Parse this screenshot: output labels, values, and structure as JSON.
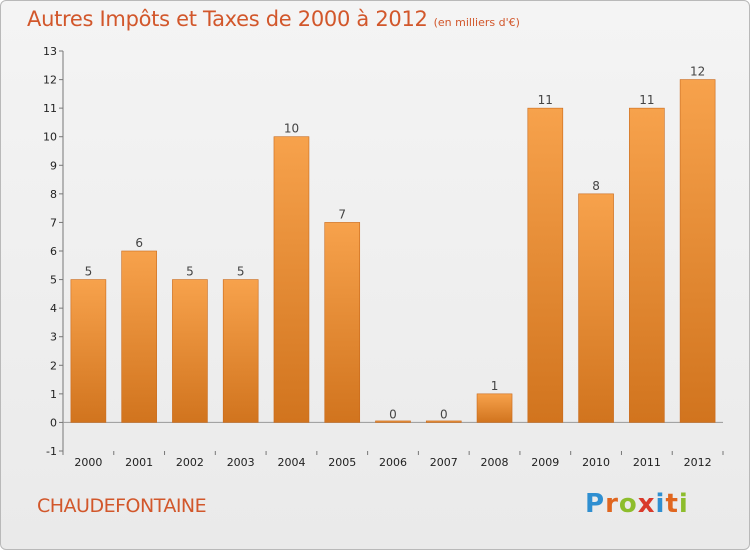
{
  "title": "Autres Impôts et Taxes de 2000 à 2012",
  "subtitle": "(en milliers d'€)",
  "commune": "CHAUDEFONTAINE",
  "logo": {
    "letters": [
      "P",
      "r",
      "o",
      "x",
      "i",
      "t",
      "i"
    ],
    "colors": [
      "#2f8fd1",
      "#e0661f",
      "#8dbd2c",
      "#d93a2b",
      "#2f8fd1",
      "#e0661f",
      "#8dbd2c"
    ]
  },
  "colors": {
    "bar_light": "#f7a24c",
    "bar_dark": "#d1741e",
    "text_accent": "#d2572b"
  },
  "chart_data": {
    "type": "bar",
    "title": "Autres Impôts et Taxes de 2000 à 2012",
    "subtitle": "(en milliers d'€)",
    "categories": [
      "2000",
      "2001",
      "2002",
      "2003",
      "2004",
      "2005",
      "2006",
      "2007",
      "2008",
      "2009",
      "2010",
      "2011",
      "2012"
    ],
    "values": [
      5,
      6,
      5,
      5,
      10,
      7,
      0,
      0,
      1,
      11,
      8,
      11,
      12
    ],
    "ylim": [
      -1,
      13
    ],
    "yticks": [
      -1,
      0,
      1,
      2,
      3,
      4,
      5,
      6,
      7,
      8,
      9,
      10,
      11,
      12,
      13
    ],
    "grid": false,
    "legend": "none"
  }
}
